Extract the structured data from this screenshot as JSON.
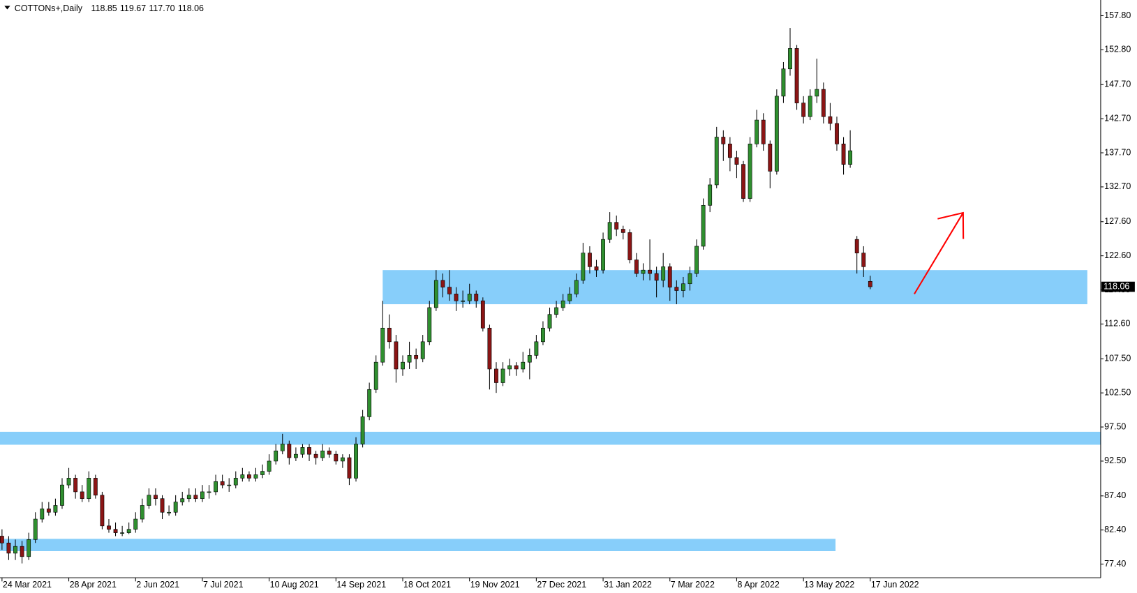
{
  "chart_data": {
    "type": "candlestick",
    "title": "COTTONs+,Daily",
    "header_labels": [
      "118.85",
      "119.67",
      "117.70",
      "118.06"
    ],
    "categories": [
      "24 Mar 2021",
      null,
      null,
      null,
      null,
      null,
      null,
      null,
      null,
      null,
      "28 Apr 2021",
      null,
      null,
      null,
      null,
      null,
      null,
      null,
      null,
      null,
      "2 Jun 2021",
      null,
      null,
      null,
      null,
      null,
      null,
      null,
      null,
      null,
      "7 Jul 2021",
      null,
      null,
      null,
      null,
      null,
      null,
      null,
      null,
      null,
      "10 Aug 2021",
      null,
      null,
      null,
      null,
      null,
      null,
      null,
      null,
      null,
      "14 Sep 2021",
      null,
      null,
      null,
      null,
      null,
      null,
      null,
      null,
      null,
      "18 Oct 2021",
      null,
      null,
      null,
      null,
      null,
      null,
      null,
      null,
      null,
      "19 Nov 2021",
      null,
      null,
      null,
      null,
      null,
      null,
      null,
      null,
      null,
      "27 Dec 2021",
      null,
      null,
      null,
      null,
      null,
      null,
      null,
      null,
      null,
      "31 Jan 2022",
      null,
      null,
      null,
      null,
      null,
      null,
      null,
      null,
      null,
      "7 Mar 2022",
      null,
      null,
      null,
      null,
      null,
      null,
      null,
      null,
      null,
      "8 Apr 2022",
      null,
      null,
      null,
      null,
      null,
      null,
      null,
      null,
      null,
      "13 May 2022",
      null,
      null,
      null,
      null,
      null,
      null,
      null,
      null,
      null,
      "17 Jun 2022"
    ],
    "open": [
      81.5,
      80.5,
      79,
      80,
      78.5,
      81,
      84,
      85.5,
      85,
      86,
      89,
      90,
      88,
      87,
      90,
      87.5,
      83,
      82.5,
      82,
      82,
      82.5,
      84,
      86,
      87.5,
      87,
      85,
      85,
      86.5,
      87,
      87.5,
      87,
      88,
      88,
      89.5,
      89,
      89,
      90,
      90.5,
      90,
      90.5,
      91,
      92.5,
      94,
      95,
      93,
      93.5,
      94.5,
      93.5,
      93,
      94,
      93.5,
      92.5,
      93,
      90,
      95,
      99,
      103,
      107,
      112,
      110,
      106,
      107,
      108,
      107.5,
      110,
      115,
      119,
      118,
      117,
      116,
      116,
      117,
      116,
      112,
      106,
      104,
      106,
      106.5,
      106,
      107,
      108,
      110,
      112,
      114,
      115,
      116,
      117,
      119,
      123,
      121,
      120.5,
      125,
      127.5,
      126.5,
      126,
      122,
      120,
      120.5,
      120,
      119,
      121,
      118,
      117.5,
      118.5,
      120,
      124,
      130,
      133,
      140,
      139,
      137,
      136,
      131,
      139,
      142.5,
      139,
      135,
      146,
      150,
      153,
      145,
      143,
      146,
      147,
      143,
      142,
      139,
      136,
      125,
      123,
      118.85
    ],
    "high": [
      82.5,
      81.5,
      81,
      80.8,
      82,
      85,
      86.5,
      86.5,
      87,
      90,
      91.5,
      90.5,
      89,
      91,
      90.5,
      88,
      84,
      83.5,
      83,
      83.5,
      85,
      87,
      88.5,
      88.5,
      87.5,
      86,
      87.5,
      88,
      88.5,
      88.5,
      89,
      89,
      90.5,
      90.5,
      90,
      91,
      91.5,
      91,
      91.5,
      92,
      93.5,
      95,
      96.5,
      95.5,
      94.5,
      95,
      95,
      94,
      95,
      94.5,
      94,
      93.5,
      93.5,
      96,
      100,
      104,
      108,
      116,
      114,
      111,
      108,
      110,
      109,
      111,
      116,
      120.5,
      120,
      120.5,
      118,
      117.5,
      118.5,
      117.5,
      116.5,
      112.5,
      107,
      107,
      107.5,
      107,
      108.5,
      109,
      111,
      113,
      115,
      116,
      117,
      118,
      120,
      124.5,
      124,
      122,
      126,
      129,
      128.5,
      127,
      126.5,
      123,
      121.5,
      125,
      121,
      123,
      121.5,
      119,
      119.5,
      121,
      125,
      131,
      134,
      141.5,
      141,
      140,
      138,
      136.5,
      140,
      144,
      143.5,
      139.5,
      147,
      151,
      156,
      153.5,
      146,
      147,
      151.5,
      148,
      145,
      143,
      140,
      141,
      125.5,
      124,
      119.67
    ],
    "low": [
      79.5,
      78,
      78,
      77.5,
      78,
      80.5,
      83.5,
      84.5,
      84.5,
      85.5,
      88.5,
      87,
      86.5,
      86.5,
      87,
      82.5,
      82,
      81.5,
      81.5,
      81.8,
      82,
      83.5,
      85.5,
      86,
      84,
      84.5,
      84.5,
      86,
      86.5,
      86.5,
      86.5,
      87,
      87.5,
      88.5,
      88,
      88.5,
      89.5,
      89.5,
      89.5,
      90,
      90.5,
      92,
      93.5,
      92,
      92.5,
      93,
      92.5,
      92,
      92.5,
      93,
      92,
      91.5,
      89,
      89.5,
      94.5,
      98.5,
      102.5,
      106.5,
      109,
      104,
      105,
      106,
      106,
      107,
      109.5,
      114.5,
      116.5,
      116,
      114.5,
      115,
      115.5,
      115,
      111.5,
      103,
      102.5,
      103.5,
      105,
      105,
      105.5,
      104.5,
      107.5,
      109.5,
      111.5,
      113.5,
      114.5,
      115.5,
      116.5,
      118.5,
      120,
      119.5,
      120,
      124.5,
      125.5,
      125,
      121.5,
      119.5,
      119,
      119,
      116.5,
      118,
      116,
      115.5,
      116.5,
      117.5,
      119.5,
      123.5,
      129,
      132.5,
      136.5,
      135,
      134,
      130.5,
      130.5,
      138.5,
      138,
      132.5,
      134.5,
      145,
      149,
      144,
      142,
      142.5,
      145,
      142,
      141,
      138,
      134.5,
      135.5,
      120,
      119.5,
      117.7
    ],
    "close": [
      80.5,
      79,
      80,
      78.5,
      81,
      84,
      85.5,
      85,
      86,
      89,
      90,
      88,
      87,
      90,
      87.5,
      83,
      82.5,
      82,
      82,
      82.5,
      84,
      86,
      87.5,
      87,
      85,
      85,
      86.5,
      87,
      87.5,
      87,
      88,
      88,
      89.5,
      89,
      89,
      90,
      90.5,
      90,
      90.5,
      91,
      92.5,
      94,
      95,
      93,
      93.5,
      94.5,
      93.5,
      93,
      94,
      93.5,
      92.5,
      93,
      90,
      95,
      99,
      103,
      107,
      112,
      110,
      106,
      107,
      108,
      107.5,
      110,
      115,
      119,
      118,
      117,
      116,
      116,
      117,
      116,
      112,
      106,
      104,
      106,
      106.5,
      106,
      107,
      108,
      110,
      112,
      114,
      115,
      116,
      117,
      119,
      123,
      121,
      120.5,
      125,
      127.5,
      126.5,
      126,
      122,
      120,
      120.5,
      120,
      119,
      121,
      118,
      117.5,
      118.5,
      120,
      124,
      130,
      133,
      140,
      139,
      137,
      136,
      131,
      139,
      142.5,
      139,
      135,
      146,
      150,
      153,
      145,
      143,
      146,
      147,
      143,
      142,
      139,
      136,
      138,
      123,
      121,
      118.06
    ],
    "up_color": "#2f8f2f",
    "down_color": "#8b1515",
    "wick_color": "#000000",
    "xlim": [
      -0.3,
      164.5
    ],
    "ylim": [
      75.4,
      160.1
    ],
    "yticks": [
      {
        "value": 77.4,
        "label": "77.40"
      },
      {
        "value": 82.4,
        "label": "82.40"
      },
      {
        "value": 87.4,
        "label": "87.40"
      },
      {
        "value": 92.5,
        "label": "92.50"
      },
      {
        "value": 97.5,
        "label": "97.50"
      },
      {
        "value": 102.5,
        "label": "102.50"
      },
      {
        "value": 107.5,
        "label": "107.50"
      },
      {
        "value": 112.6,
        "label": "112.60"
      },
      {
        "value": 117.6,
        "label": "117.60"
      },
      {
        "value": 122.6,
        "label": "122.60"
      },
      {
        "value": 127.6,
        "label": "127.60"
      },
      {
        "value": 132.7,
        "label": "132.70"
      },
      {
        "value": 137.7,
        "label": "137.70"
      },
      {
        "value": 142.7,
        "label": "142.70"
      },
      {
        "value": 147.7,
        "label": "147.70"
      },
      {
        "value": 152.8,
        "label": "152.80"
      },
      {
        "value": 157.8,
        "label": "157.80"
      }
    ],
    "last_price": {
      "value": 118.06,
      "label": "118.06"
    },
    "zones": [
      {
        "low": 115.5,
        "high": 120.5,
        "start": 57,
        "end": 162.5,
        "color": "#87cefa"
      },
      {
        "low": 94.9,
        "high": 96.8,
        "start": -0.3,
        "end": 164.5,
        "color": "#87cefa"
      },
      {
        "low": 79.3,
        "high": 81.1,
        "start": -0.3,
        "end": 124.8,
        "color": "#87cefa"
      }
    ],
    "arrow": {
      "x": [
        136.6,
        143.9
      ],
      "y": [
        117.0,
        128.9
      ],
      "color": "#ff0000"
    }
  }
}
